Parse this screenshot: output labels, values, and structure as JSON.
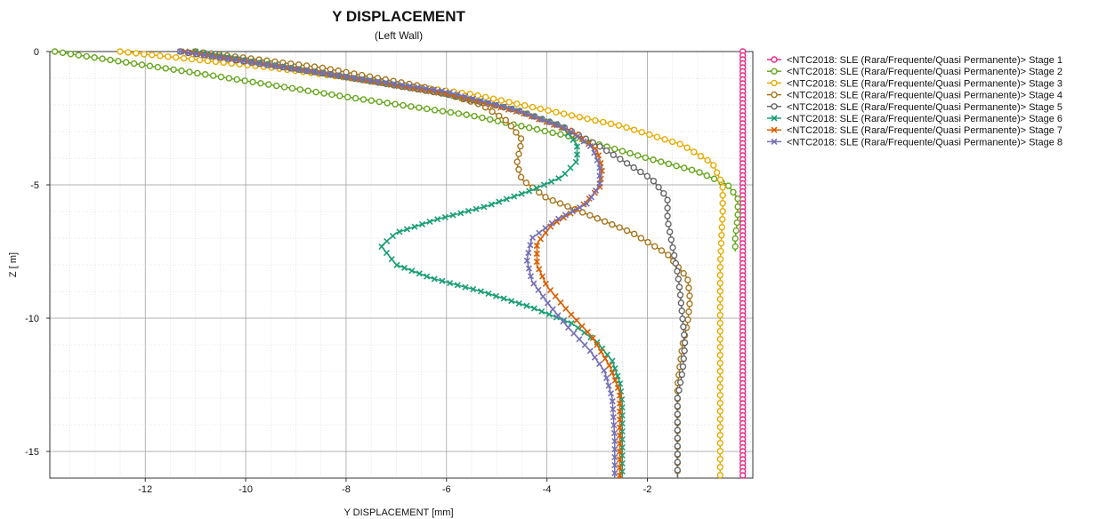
{
  "chart_data": {
    "type": "line",
    "title": "Y DISPLACEMENT",
    "subtitle": "(Left Wall)",
    "xlabel": "Y DISPLACEMENT [mm]",
    "ylabel": "Z [ m]",
    "xlim": [
      -13.9,
      0.1
    ],
    "ylim": [
      -16,
      0
    ],
    "x_ticks": [
      -12,
      -10,
      -8,
      -6,
      -4,
      -2
    ],
    "y_ticks": [
      0,
      -5,
      -10,
      -15
    ],
    "grid": true,
    "minor_grid": true,
    "legend_position": "right",
    "series": [
      {
        "name": "<NTC2018: SLE (Rara/Frequente/Quasi Permanente)> Stage 1",
        "color": "#e7298a",
        "marker": "circle",
        "points": [
          [
            -0.1,
            0
          ],
          [
            -0.1,
            -16
          ]
        ]
      },
      {
        "name": "<NTC2018: SLE (Rara/Frequente/Quasi Permanente)> Stage 2",
        "color": "#66a61e",
        "marker": "circle",
        "points": [
          [
            -13.8,
            0
          ],
          [
            -11.0,
            -0.8
          ],
          [
            -8.0,
            -1.7
          ],
          [
            -5.5,
            -2.4
          ],
          [
            -3.5,
            -3.2
          ],
          [
            -2.0,
            -4.0
          ],
          [
            -1.0,
            -4.5
          ],
          [
            -0.4,
            -5.0
          ],
          [
            -0.2,
            -5.5
          ],
          [
            -0.2,
            -6.2
          ],
          [
            -0.25,
            -7.0
          ],
          [
            -0.25,
            -7.5
          ]
        ]
      },
      {
        "name": "<NTC2018: SLE (Rara/Frequente/Quasi Permanente)> Stage 3",
        "color": "#e6ab02",
        "marker": "circle",
        "points": [
          [
            -12.5,
            0
          ],
          [
            -9.5,
            -0.6
          ],
          [
            -7.5,
            -1.1
          ],
          [
            -5.5,
            -1.6
          ],
          [
            -4.0,
            -2.2
          ],
          [
            -2.5,
            -2.8
          ],
          [
            -1.3,
            -3.5
          ],
          [
            -0.7,
            -4.2
          ],
          [
            -0.5,
            -5.0
          ],
          [
            -0.5,
            -6.0
          ],
          [
            -0.55,
            -8.0
          ],
          [
            -0.55,
            -12.0
          ],
          [
            -0.55,
            -16.0
          ]
        ]
      },
      {
        "name": "<NTC2018: SLE (Rara/Frequente/Quasi Permanente)> Stage 4",
        "color": "#a6761d",
        "marker": "circle",
        "points": [
          [
            -11.0,
            0
          ],
          [
            -8.5,
            -0.6
          ],
          [
            -6.5,
            -1.3
          ],
          [
            -5.3,
            -2.0
          ],
          [
            -4.8,
            -2.6
          ],
          [
            -4.5,
            -3.3
          ],
          [
            -4.6,
            -4.2
          ],
          [
            -4.5,
            -4.8
          ],
          [
            -4.0,
            -5.5
          ],
          [
            -3.2,
            -6.1
          ],
          [
            -2.3,
            -6.8
          ],
          [
            -1.6,
            -7.6
          ],
          [
            -1.2,
            -8.5
          ],
          [
            -1.15,
            -9.3
          ],
          [
            -1.2,
            -10.2
          ],
          [
            -1.3,
            -11.0
          ],
          [
            -1.4,
            -12.5
          ],
          [
            -1.4,
            -14.0
          ],
          [
            -1.4,
            -16.0
          ]
        ]
      },
      {
        "name": "<NTC2018: SLE (Rara/Frequente/Quasi Permanente)> Stage 5",
        "color": "#666666",
        "marker": "circle",
        "points": [
          [
            -11.3,
            0
          ],
          [
            -8.5,
            -0.8
          ],
          [
            -6.0,
            -1.6
          ],
          [
            -4.6,
            -2.2
          ],
          [
            -3.7,
            -2.8
          ],
          [
            -3.0,
            -3.5
          ],
          [
            -2.4,
            -4.2
          ],
          [
            -1.9,
            -4.8
          ],
          [
            -1.6,
            -5.5
          ],
          [
            -1.6,
            -6.3
          ],
          [
            -1.5,
            -7.3
          ],
          [
            -1.4,
            -8.3
          ],
          [
            -1.35,
            -9.0
          ],
          [
            -1.3,
            -10.0
          ],
          [
            -1.25,
            -11.0
          ],
          [
            -1.3,
            -12.0
          ],
          [
            -1.4,
            -13.0
          ],
          [
            -1.4,
            -14.5
          ],
          [
            -1.4,
            -16.0
          ]
        ]
      },
      {
        "name": "<NTC2018: SLE (Rara/Frequente/Quasi Permanente)> Stage 6",
        "color": "#1b9e77",
        "marker": "x",
        "points": [
          [
            -11.0,
            0
          ],
          [
            -8.5,
            -0.8
          ],
          [
            -6.2,
            -1.5
          ],
          [
            -4.6,
            -2.2
          ],
          [
            -3.7,
            -2.8
          ],
          [
            -3.4,
            -3.5
          ],
          [
            -3.4,
            -4.1
          ],
          [
            -3.7,
            -4.7
          ],
          [
            -4.3,
            -5.2
          ],
          [
            -5.2,
            -5.8
          ],
          [
            -6.2,
            -6.3
          ],
          [
            -7.0,
            -6.8
          ],
          [
            -7.3,
            -7.3
          ],
          [
            -7.0,
            -8.0
          ],
          [
            -6.3,
            -8.5
          ],
          [
            -5.3,
            -9.0
          ],
          [
            -4.3,
            -9.6
          ],
          [
            -3.5,
            -10.2
          ],
          [
            -3.0,
            -10.9
          ],
          [
            -2.7,
            -11.6
          ],
          [
            -2.55,
            -12.4
          ],
          [
            -2.5,
            -13.2
          ],
          [
            -2.5,
            -14.5
          ],
          [
            -2.5,
            -16.0
          ]
        ]
      },
      {
        "name": "<NTC2018: SLE (Rara/Frequente/Quasi Permanente)> Stage 7",
        "color": "#d95f02",
        "marker": "x",
        "points": [
          [
            -11.2,
            0
          ],
          [
            -8.5,
            -0.8
          ],
          [
            -6.0,
            -1.6
          ],
          [
            -4.5,
            -2.3
          ],
          [
            -3.5,
            -3.0
          ],
          [
            -3.0,
            -3.7
          ],
          [
            -2.9,
            -4.4
          ],
          [
            -2.95,
            -5.1
          ],
          [
            -3.3,
            -5.8
          ],
          [
            -3.9,
            -6.5
          ],
          [
            -4.2,
            -7.2
          ],
          [
            -4.2,
            -8.0
          ],
          [
            -4.0,
            -8.8
          ],
          [
            -3.6,
            -9.7
          ],
          [
            -3.1,
            -10.7
          ],
          [
            -2.75,
            -11.8
          ],
          [
            -2.55,
            -12.8
          ],
          [
            -2.55,
            -14.0
          ],
          [
            -2.55,
            -16.0
          ]
        ]
      },
      {
        "name": "<NTC2018: SLE (Rara/Frequente/Quasi Permanente)> Stage 8",
        "color": "#7570b3",
        "marker": "x",
        "points": [
          [
            -11.3,
            0
          ],
          [
            -8.5,
            -0.8
          ],
          [
            -6.0,
            -1.5
          ],
          [
            -4.6,
            -2.2
          ],
          [
            -3.6,
            -2.9
          ],
          [
            -3.1,
            -3.6
          ],
          [
            -2.95,
            -4.3
          ],
          [
            -2.95,
            -5.0
          ],
          [
            -3.2,
            -5.7
          ],
          [
            -3.8,
            -6.3
          ],
          [
            -4.3,
            -7.0
          ],
          [
            -4.4,
            -7.8
          ],
          [
            -4.3,
            -8.6
          ],
          [
            -4.0,
            -9.4
          ],
          [
            -3.6,
            -10.3
          ],
          [
            -3.15,
            -11.2
          ],
          [
            -2.85,
            -12.0
          ],
          [
            -2.7,
            -13.0
          ],
          [
            -2.65,
            -14.5
          ],
          [
            -2.65,
            -16.0
          ]
        ]
      }
    ]
  }
}
